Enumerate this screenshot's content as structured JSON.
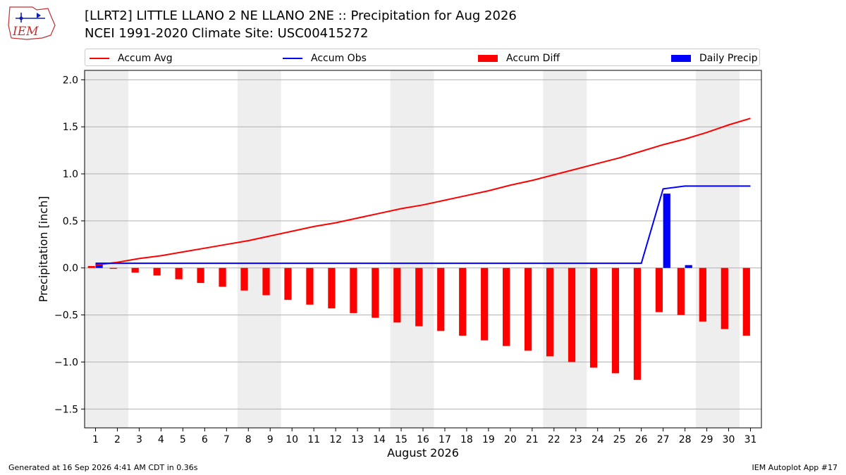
{
  "header": {
    "logo_text": "IEM",
    "title_line1": "[LLRT2] LITTLE LLANO 2 NE LLANO 2NE :: Precipitation for Aug 2026",
    "title_line2": "NCEI 1991-2020 Climate Site: USC00415272"
  },
  "footer": {
    "generated": "Generated at 16 Sep 2026 4:41 AM CDT in 0.36s",
    "app": "IEM Autoplot App #17"
  },
  "colors": {
    "accum_avg": "#ff0000",
    "accum_obs": "#0000ff",
    "accum_diff": "#ff0000",
    "daily_precip": "#0000ff",
    "weekend_shade": "#eeeeee",
    "grid": "#b0b0b0"
  },
  "chart_data": {
    "type": "bar",
    "title": "",
    "xlabel": "August 2026",
    "ylabel": "Precipitation [inch]",
    "xlim": [
      0.5,
      31.5
    ],
    "ylim": [
      -1.7,
      2.1
    ],
    "yticks": [
      -1.5,
      -1.0,
      -0.5,
      0.0,
      0.5,
      1.0,
      1.5,
      2.0
    ],
    "ytick_labels": [
      "−1.5",
      "−1.0",
      "−0.5",
      "0.0",
      "0.5",
      "1.0",
      "1.5",
      "2.0"
    ],
    "grid": "horizontal",
    "legend_placement": "top",
    "days": [
      1,
      2,
      3,
      4,
      5,
      6,
      7,
      8,
      9,
      10,
      11,
      12,
      13,
      14,
      15,
      16,
      17,
      18,
      19,
      20,
      21,
      22,
      23,
      24,
      25,
      26,
      27,
      28,
      29,
      30,
      31
    ],
    "weekend_spans": [
      [
        0.5,
        2.5
      ],
      [
        7.5,
        9.5
      ],
      [
        14.5,
        16.5
      ],
      [
        21.5,
        23.5
      ],
      [
        28.5,
        30.5
      ]
    ],
    "series": [
      {
        "name": "Accum Avg",
        "type": "line",
        "values": [
          0.03,
          0.06,
          0.1,
          0.13,
          0.17,
          0.21,
          0.25,
          0.29,
          0.34,
          0.39,
          0.44,
          0.48,
          0.53,
          0.58,
          0.63,
          0.67,
          0.72,
          0.77,
          0.82,
          0.88,
          0.93,
          0.99,
          1.05,
          1.11,
          1.17,
          1.24,
          1.31,
          1.37,
          1.44,
          1.52,
          1.59
        ]
      },
      {
        "name": "Accum Obs",
        "type": "line",
        "values": [
          0.05,
          0.05,
          0.05,
          0.05,
          0.05,
          0.05,
          0.05,
          0.05,
          0.05,
          0.05,
          0.05,
          0.05,
          0.05,
          0.05,
          0.05,
          0.05,
          0.05,
          0.05,
          0.05,
          0.05,
          0.05,
          0.05,
          0.05,
          0.05,
          0.05,
          0.05,
          0.84,
          0.87,
          0.87,
          0.87,
          0.87
        ]
      },
      {
        "name": "Accum Diff",
        "type": "bar",
        "values": [
          0.02,
          -0.01,
          -0.05,
          -0.08,
          -0.12,
          -0.16,
          -0.2,
          -0.24,
          -0.29,
          -0.34,
          -0.39,
          -0.43,
          -0.48,
          -0.53,
          -0.58,
          -0.62,
          -0.67,
          -0.72,
          -0.77,
          -0.83,
          -0.88,
          -0.94,
          -1.0,
          -1.06,
          -1.12,
          -1.19,
          -0.47,
          -0.5,
          -0.57,
          -0.65,
          -0.72
        ]
      },
      {
        "name": "Daily Precip",
        "type": "bar",
        "values": [
          0.05,
          0,
          0,
          0,
          0,
          0,
          0,
          0,
          0,
          0,
          0,
          0,
          0,
          0,
          0,
          0,
          0,
          0,
          0,
          0,
          0,
          0,
          0,
          0,
          0,
          0,
          0.79,
          0.03,
          0,
          0,
          0
        ]
      }
    ]
  }
}
